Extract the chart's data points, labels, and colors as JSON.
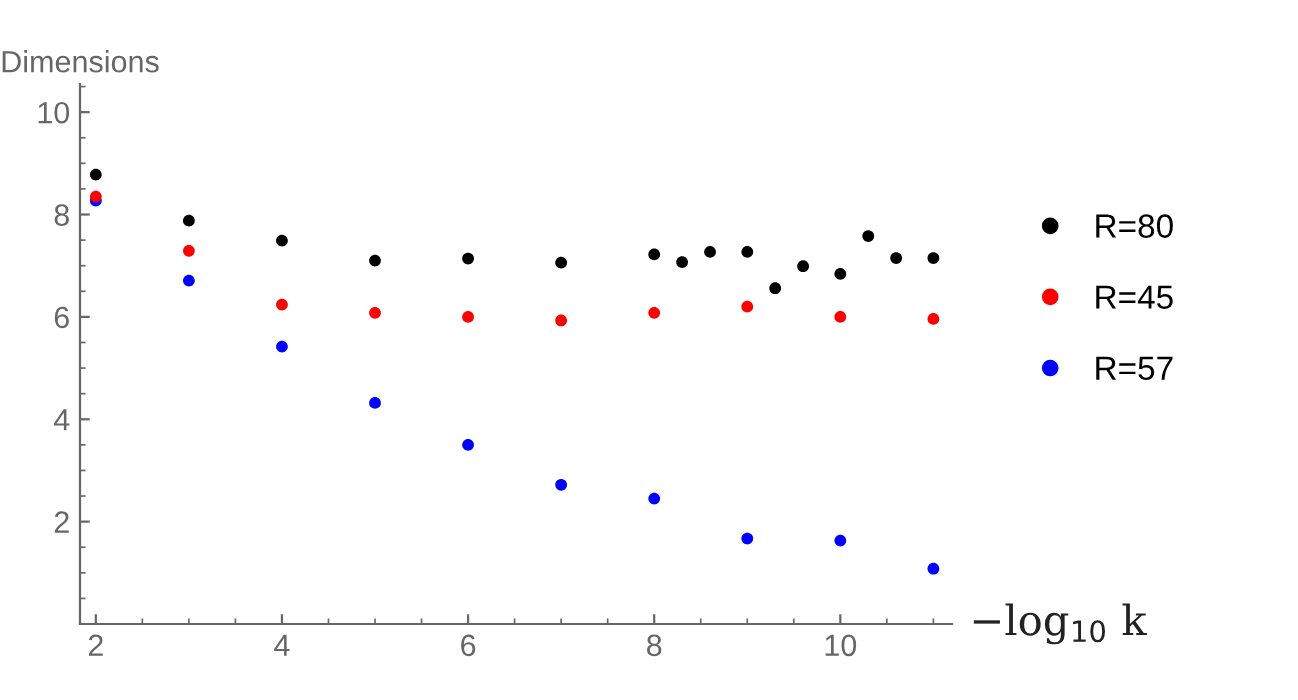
{
  "chart_data": {
    "type": "scatter",
    "ylabel": "Dimensions",
    "xlabel": "−log$_{10}$ k",
    "xlim": [
      1.83,
      11.2
    ],
    "ylim": [
      0,
      10.55
    ],
    "xticks": [
      2,
      4,
      6,
      8,
      10
    ],
    "yticks": [
      2,
      4,
      6,
      8,
      10
    ],
    "grid": false,
    "legend": "right",
    "marker": "circle",
    "series": [
      {
        "name": "R=80",
        "color": "#000000",
        "x": [
          2,
          3,
          4,
          5,
          6,
          7,
          8,
          8.3,
          8.6,
          9,
          9.3,
          9.6,
          10,
          10.3,
          10.6,
          11
        ],
        "values": [
          8.78,
          7.88,
          7.49,
          7.1,
          7.14,
          7.06,
          7.22,
          7.07,
          7.27,
          7.27,
          6.56,
          6.99,
          6.84,
          7.58,
          7.15,
          7.15
        ]
      },
      {
        "name": "R=45",
        "color": "#ff0000",
        "x": [
          2,
          3,
          4,
          5,
          6,
          7,
          8,
          9,
          10,
          11
        ],
        "values": [
          8.35,
          7.29,
          6.24,
          6.08,
          6.0,
          5.93,
          6.08,
          6.2,
          6.0,
          5.96
        ]
      },
      {
        "name": "R=57",
        "color": "#0000ff",
        "x": [
          2,
          3,
          4,
          5,
          6,
          7,
          8,
          9,
          10,
          11
        ],
        "values": [
          8.27,
          6.71,
          5.42,
          4.32,
          3.5,
          2.72,
          2.45,
          1.67,
          1.63,
          1.08
        ]
      }
    ]
  }
}
